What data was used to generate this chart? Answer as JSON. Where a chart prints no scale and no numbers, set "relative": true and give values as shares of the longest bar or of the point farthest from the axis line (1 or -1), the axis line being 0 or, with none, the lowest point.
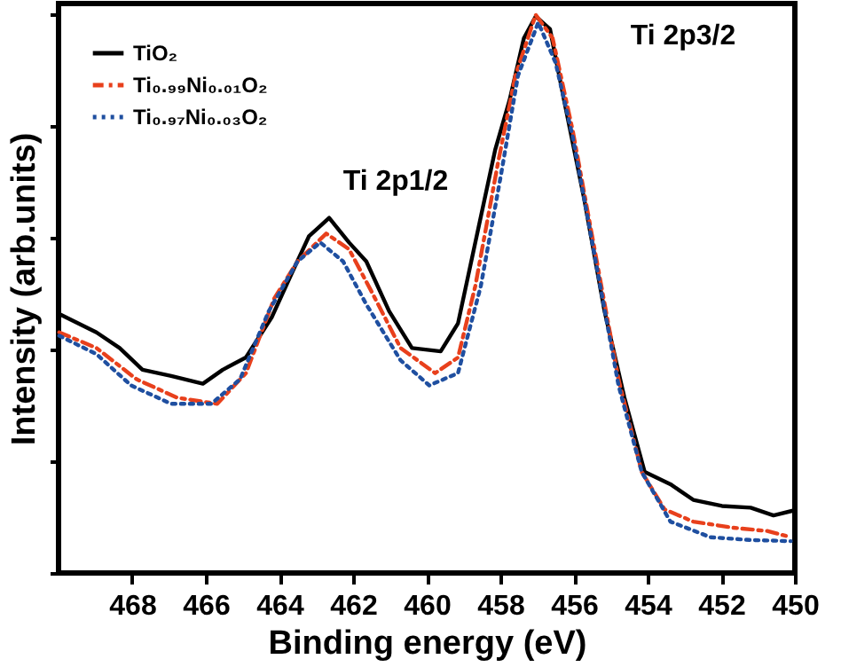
{
  "chart_data": {
    "type": "line",
    "relative": true,
    "xlabel": "Binding energy (eV)",
    "ylabel": "Intensity (arb.units)",
    "xlim": [
      470,
      450
    ],
    "xticks": [
      468,
      466,
      464,
      462,
      460,
      458,
      456,
      454,
      452,
      450
    ],
    "tick_labels": "x",
    "grid": false,
    "legend": "top left",
    "marker": "none",
    "annotations": [
      "Ti 2p1/2",
      "Ti 2p3/2"
    ],
    "series": [
      {
        "name": "TiO₂",
        "color": "#000000",
        "line_style": "solid",
        "x": [
          469.98,
          468.97,
          468.34,
          467.72,
          466.94,
          466.08,
          465.54,
          464.91,
          464.21,
          463.67,
          463.2,
          462.65,
          462.11,
          461.64,
          461.02,
          460.4,
          459.62,
          459.15,
          458.68,
          458.14,
          457.75,
          457.36,
          457.04,
          456.65,
          456.27,
          455.72,
          455.17,
          454.63,
          454.08,
          453.38,
          452.76,
          451.98,
          451.2,
          450.58,
          450.03
        ],
        "values": [
          0.464,
          0.431,
          0.403,
          0.364,
          0.353,
          0.339,
          0.364,
          0.386,
          0.458,
          0.536,
          0.603,
          0.636,
          0.592,
          0.558,
          0.469,
          0.403,
          0.397,
          0.447,
          0.592,
          0.758,
          0.847,
          0.958,
          0.997,
          0.974,
          0.847,
          0.669,
          0.469,
          0.314,
          0.181,
          0.159,
          0.131,
          0.12,
          0.117,
          0.103,
          0.112
        ]
      },
      {
        "name": "Ti₀.₉₉Ni₀.₀₁O₂",
        "color": "#e8401c",
        "line_style": "dashed",
        "x": [
          469.98,
          468.97,
          467.88,
          466.78,
          465.69,
          464.91,
          464.14,
          463.51,
          462.73,
          462.11,
          461.49,
          460.71,
          459.77,
          459.15,
          458.68,
          458.06,
          457.59,
          457.04,
          456.58,
          456.03,
          455.41,
          454.79,
          454.16,
          453.54,
          452.76,
          451.67,
          450.73,
          450.11
        ],
        "values": [
          0.431,
          0.403,
          0.347,
          0.314,
          0.303,
          0.358,
          0.492,
          0.558,
          0.608,
          0.58,
          0.503,
          0.403,
          0.358,
          0.386,
          0.514,
          0.736,
          0.891,
          1.0,
          0.958,
          0.791,
          0.569,
          0.347,
          0.181,
          0.114,
          0.092,
          0.081,
          0.075,
          0.064
        ]
      },
      {
        "name": "Ti₀.₉₇Ni₀.₀₃O₂",
        "color": "#1f4fa0",
        "line_style": "dotted",
        "x": [
          469.98,
          468.97,
          468.03,
          466.94,
          465.85,
          465.07,
          464.29,
          463.51,
          462.89,
          462.27,
          461.64,
          460.71,
          459.93,
          459.15,
          458.53,
          457.98,
          457.52,
          456.97,
          456.5,
          456.03,
          455.41,
          454.79,
          454.16,
          453.38,
          452.29,
          451.2,
          450.11
        ],
        "values": [
          0.425,
          0.392,
          0.336,
          0.303,
          0.303,
          0.347,
          0.469,
          0.558,
          0.592,
          0.558,
          0.481,
          0.381,
          0.336,
          0.358,
          0.514,
          0.714,
          0.891,
          0.986,
          0.914,
          0.78,
          0.558,
          0.336,
          0.181,
          0.092,
          0.064,
          0.059,
          0.057
        ]
      }
    ]
  }
}
